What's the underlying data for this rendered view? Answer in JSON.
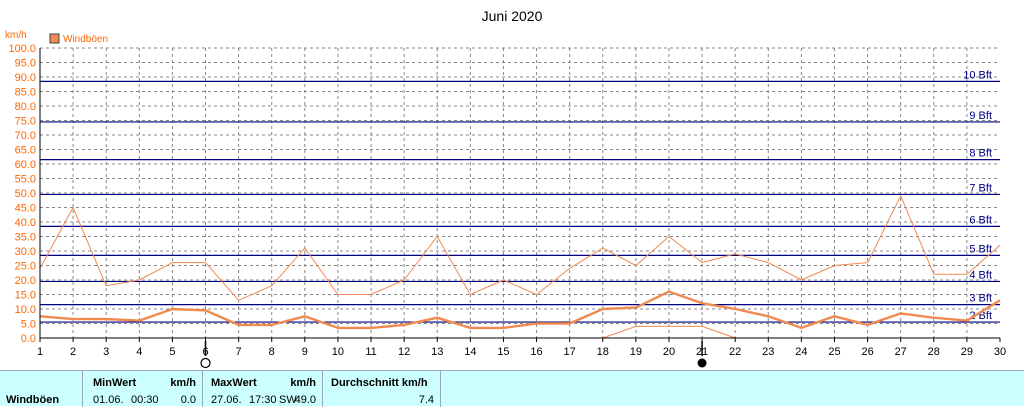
{
  "chart_data": {
    "type": "line",
    "title": "Juni 2020",
    "ylabel": "km/h",
    "legend": "Windböen",
    "ylim": [
      0,
      100
    ],
    "yticks": [
      "0.0",
      "5.0",
      "10.0",
      "15.0",
      "20.0",
      "25.0",
      "30.0",
      "35.0",
      "40.0",
      "45.0",
      "50.0",
      "55.0",
      "60.0",
      "65.0",
      "70.0",
      "75.0",
      "80.0",
      "85.0",
      "90.0",
      "95.0",
      "100.0"
    ],
    "x": [
      1,
      2,
      3,
      4,
      5,
      6,
      7,
      8,
      9,
      10,
      11,
      12,
      13,
      14,
      15,
      16,
      17,
      18,
      19,
      20,
      21,
      22,
      23,
      24,
      25,
      26,
      27,
      28,
      29,
      30
    ],
    "beaufort_lines": [
      {
        "label": "2 Bft",
        "value": 5.5
      },
      {
        "label": "3 Bft",
        "value": 11.5
      },
      {
        "label": "4 Bft",
        "value": 19.5
      },
      {
        "label": "5 Bft",
        "value": 28.5
      },
      {
        "label": "6 Bft",
        "value": 38.5
      },
      {
        "label": "7 Bft",
        "value": 49.5
      },
      {
        "label": "8 Bft",
        "value": 61.5
      },
      {
        "label": "9 Bft",
        "value": 74.5
      },
      {
        "label": "10 Bft",
        "value": 88.5
      }
    ],
    "series": [
      {
        "name": "Windböen",
        "kind": "max",
        "values": [
          24,
          45,
          18,
          20,
          26,
          26,
          13,
          18,
          31,
          15,
          15,
          20,
          35,
          15,
          20,
          15,
          24,
          31,
          25,
          35,
          26,
          29,
          26,
          20,
          25,
          26,
          49,
          22,
          22,
          32
        ]
      },
      {
        "name": "Windböen",
        "kind": "avg",
        "values": [
          7.5,
          6.5,
          6.5,
          6.0,
          10.0,
          9.5,
          4.5,
          4.5,
          7.5,
          3.5,
          3.5,
          4.5,
          7.0,
          3.5,
          3.5,
          5.0,
          5.0,
          10.0,
          10.5,
          16.0,
          12.0,
          10.0,
          7.5,
          3.5,
          7.5,
          4.5,
          8.5,
          7.0,
          6.0,
          13.0
        ]
      },
      {
        "name": "Windböen",
        "kind": "min",
        "values": [
          null,
          null,
          null,
          null,
          null,
          null,
          null,
          null,
          null,
          null,
          null,
          null,
          null,
          null,
          null,
          null,
          null,
          0,
          4,
          4,
          4,
          0,
          null,
          null,
          null,
          null,
          null,
          null,
          null,
          null
        ]
      }
    ],
    "colors": {
      "max": "#f08a50",
      "avg": "#f08a50",
      "min": "#f08a50",
      "beaufort": "#000080",
      "grid": "#888888",
      "axis_text": "#ff6600"
    },
    "moon_markers": [
      {
        "x": 6,
        "phase": "first-quarter"
      },
      {
        "x": 21,
        "phase": "new-moon"
      }
    ]
  },
  "stats": {
    "row_label": "Windböen",
    "min_header": "MinWert",
    "min_unit": "km/h",
    "min_date": "01.06.",
    "min_time": "00:30",
    "min_value": "0.0",
    "max_header": "MaxWert",
    "max_unit": "km/h",
    "max_date": "27.06.",
    "max_time": "17:30",
    "max_dir": "SW",
    "max_value": "49.0",
    "avg_header": "Durchschnitt km/h",
    "avg_value": "7.4"
  }
}
